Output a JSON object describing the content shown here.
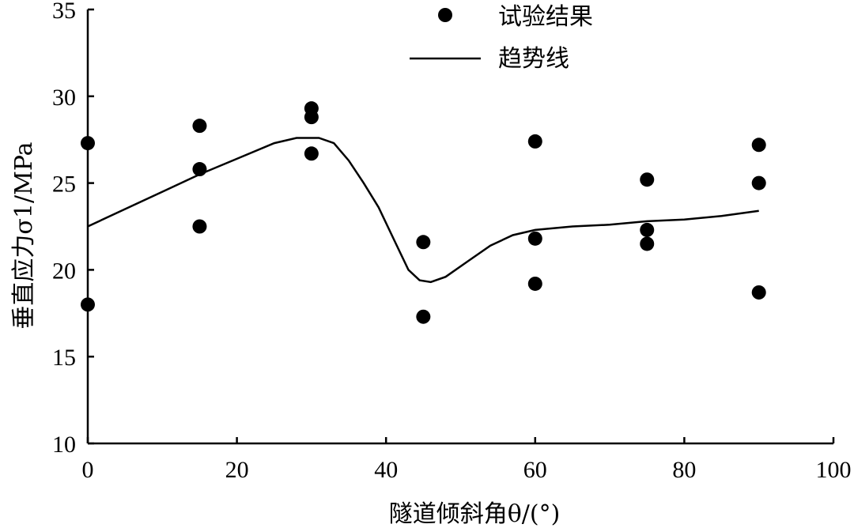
{
  "chart_data": {
    "type": "scatter",
    "xlabel": "隧道倾斜角θ/(°)",
    "ylabel": "垂直应力σ1/MPa",
    "xlim": [
      0,
      100
    ],
    "ylim": [
      10,
      35
    ],
    "x_ticks": [
      "0",
      "20",
      "40",
      "60",
      "80",
      "100"
    ],
    "y_ticks": [
      "10",
      "15",
      "20",
      "25",
      "30",
      "35"
    ],
    "grid": false,
    "legend": "top-center",
    "series": [
      {
        "name": "试验结果",
        "kind": "scatter",
        "color": "#000000",
        "points": [
          [
            0,
            27.3
          ],
          [
            0,
            18.0
          ],
          [
            15,
            28.3
          ],
          [
            15,
            25.8
          ],
          [
            15,
            22.5
          ],
          [
            30,
            29.3
          ],
          [
            30,
            28.8
          ],
          [
            30,
            26.7
          ],
          [
            45,
            21.6
          ],
          [
            45,
            17.3
          ],
          [
            60,
            27.4
          ],
          [
            60,
            21.8
          ],
          [
            60,
            19.2
          ],
          [
            75,
            25.2
          ],
          [
            75,
            22.3
          ],
          [
            75,
            21.5
          ],
          [
            90,
            27.2
          ],
          [
            90,
            25.0
          ],
          [
            90,
            18.7
          ]
        ]
      },
      {
        "name": "趋势线",
        "kind": "line",
        "color": "#000000",
        "points": [
          [
            0,
            22.5
          ],
          [
            5,
            23.5
          ],
          [
            10,
            24.5
          ],
          [
            15,
            25.5
          ],
          [
            20,
            26.4
          ],
          [
            25,
            27.3
          ],
          [
            28,
            27.6
          ],
          [
            31,
            27.6
          ],
          [
            33,
            27.3
          ],
          [
            35,
            26.3
          ],
          [
            37,
            25.0
          ],
          [
            39,
            23.6
          ],
          [
            41,
            21.8
          ],
          [
            43,
            20.0
          ],
          [
            44.5,
            19.4
          ],
          [
            46,
            19.3
          ],
          [
            48,
            19.6
          ],
          [
            51,
            20.5
          ],
          [
            54,
            21.4
          ],
          [
            57,
            22.0
          ],
          [
            60,
            22.3
          ],
          [
            65,
            22.5
          ],
          [
            70,
            22.6
          ],
          [
            75,
            22.8
          ],
          [
            80,
            22.9
          ],
          [
            85,
            23.1
          ],
          [
            90,
            23.4
          ]
        ]
      }
    ]
  }
}
